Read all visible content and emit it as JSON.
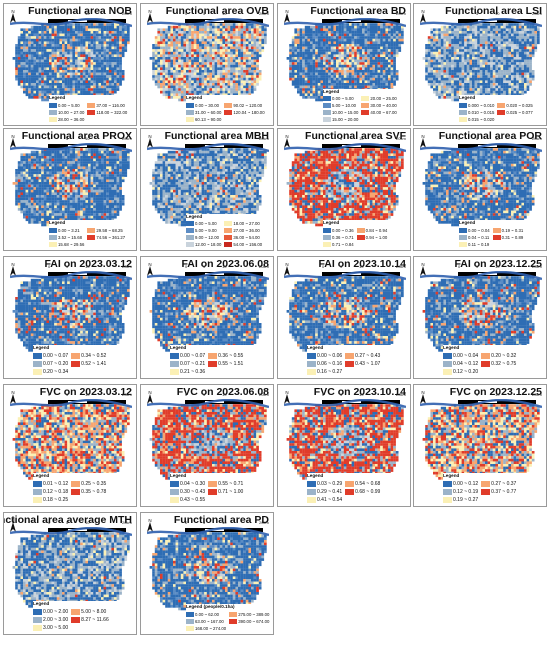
{
  "map_labels": {
    "scale_labels": [
      "0",
      "5",
      "10",
      "20km"
    ],
    "north_symbol": "N"
  },
  "panels": [
    {
      "title": "Functional area NOB",
      "legend_title": "Legend",
      "style": "blue",
      "classes": [
        {
          "label": "0.00 ~ 5.00",
          "color": "#2e6db4"
        },
        {
          "label": "10.00 ~ 27.00",
          "color": "#9bb3c9"
        },
        {
          "label": "28.00 ~ 36.00",
          "color": "#fbf0b5"
        },
        {
          "label": "37.00 ~ 116.00",
          "color": "#f7a570"
        },
        {
          "label": "118.00 ~ 322.00",
          "color": "#e03c2a"
        }
      ]
    },
    {
      "title": "Functional area OVB",
      "legend_title": "Legend",
      "style": "mixed",
      "classes": [
        {
          "label": "0.00 ~ 30.00",
          "color": "#2e6db4"
        },
        {
          "label": "31.00 ~ 60.00",
          "color": "#9bb3c9"
        },
        {
          "label": "60.13 ~ 90.00",
          "color": "#fbf0b5"
        },
        {
          "label": "90.02 ~ 120.00",
          "color": "#f7a570"
        },
        {
          "label": "120.04 ~ 180.00",
          "color": "#e03c2a"
        }
      ]
    },
    {
      "title": "Functional area BD",
      "legend_title": "Legend",
      "style": "blue",
      "classes": [
        {
          "label": "0.00 ~ 5.00",
          "color": "#2e6db4"
        },
        {
          "label": "5.00 ~ 10.00",
          "color": "#5b8cc4"
        },
        {
          "label": "10.00 ~ 15.00",
          "color": "#9bb3c9"
        },
        {
          "label": "15.00 ~ 20.00",
          "color": "#c9d3dc"
        },
        {
          "label": "20.00 ~ 25.00",
          "color": "#fbf0b5"
        },
        {
          "label": "30.00 ~ 40.00",
          "color": "#f7a570"
        },
        {
          "label": "40.00 ~ 67.00",
          "color": "#e03c2a"
        }
      ]
    },
    {
      "title": "Functional area LSI",
      "legend_title": "Legend",
      "style": "grey",
      "classes": [
        {
          "label": "0.000 ~ 0.010",
          "color": "#2e6db4"
        },
        {
          "label": "0.010 ~ 0.015",
          "color": "#9bb3c9"
        },
        {
          "label": "0.015 ~ 0.020",
          "color": "#fbf0b5"
        },
        {
          "label": "0.020 ~ 0.025",
          "color": "#f7a570"
        },
        {
          "label": "0.025 ~ 0.077",
          "color": "#e03c2a"
        }
      ]
    },
    {
      "title": "Functional area PROX",
      "legend_title": "Legend",
      "style": "blue",
      "classes": [
        {
          "label": "0.00 ~ 3.21",
          "color": "#2e6db4"
        },
        {
          "label": "3.52 ~ 15.68",
          "color": "#9bb3c9"
        },
        {
          "label": "15.68 ~ 29.56",
          "color": "#fbf0b5"
        },
        {
          "label": "29.58 ~ 68.25",
          "color": "#f7a570"
        },
        {
          "label": "74.56 ~ 361.27",
          "color": "#e03c2a"
        }
      ]
    },
    {
      "title": "Functional area MBH",
      "legend_title": "Legend",
      "style": "grey",
      "classes": [
        {
          "label": "0.00 ~ 5.00",
          "color": "#2e6db4"
        },
        {
          "label": "5.00 ~ 9.00",
          "color": "#5b8cc4"
        },
        {
          "label": "9.00 ~ 12.00",
          "color": "#9bb3c9"
        },
        {
          "label": "12.00 ~ 18.00",
          "color": "#c9d3dc"
        },
        {
          "label": "18.00 ~ 27.00",
          "color": "#fbf0b5"
        },
        {
          "label": "27.00 ~ 36.00",
          "color": "#f7a570"
        },
        {
          "label": "36.00 ~ 54.00",
          "color": "#e65a3a"
        },
        {
          "label": "54.00 ~ 156.00",
          "color": "#c8281e"
        }
      ]
    },
    {
      "title": "Functional area SVF",
      "legend_title": "Legend",
      "style": "red",
      "classes": [
        {
          "label": "0.00 ~ 0.36",
          "color": "#2e6db4"
        },
        {
          "label": "0.36 ~ 0.71",
          "color": "#9bb3c9"
        },
        {
          "label": "0.71 ~ 0.84",
          "color": "#fbf0b5"
        },
        {
          "label": "0.84 ~ 0.94",
          "color": "#f7a570"
        },
        {
          "label": "0.94 ~ 1.00",
          "color": "#e03c2a"
        }
      ]
    },
    {
      "title": "Functional area POR",
      "legend_title": "Legend",
      "style": "blue",
      "classes": [
        {
          "label": "0.00 ~ 0.04",
          "color": "#2e6db4"
        },
        {
          "label": "0.04 ~ 0.11",
          "color": "#9bb3c9"
        },
        {
          "label": "0.11 ~ 0.19",
          "color": "#fbf0b5"
        },
        {
          "label": "0.19 ~ 0.31",
          "color": "#f7a570"
        },
        {
          "label": "0.31 ~ 0.89",
          "color": "#e03c2a"
        }
      ]
    },
    {
      "title": "FAI on 2023.03.12",
      "legend_title": "Legend",
      "style": "blue",
      "big": true,
      "classes": [
        {
          "label": "0.00 ~ 0.07",
          "color": "#2e6db4"
        },
        {
          "label": "0.07 ~ 0.20",
          "color": "#9bb3c9"
        },
        {
          "label": "0.20 ~ 0.34",
          "color": "#fbf0b5"
        },
        {
          "label": "0.34 ~ 0.52",
          "color": "#f7a570"
        },
        {
          "label": "0.52 ~ 1.41",
          "color": "#e03c2a"
        }
      ]
    },
    {
      "title": "FAI on 2023.06.08",
      "legend_title": "Legend",
      "style": "blue",
      "big": true,
      "classes": [
        {
          "label": "0.00 ~ 0.07",
          "color": "#2e6db4"
        },
        {
          "label": "0.07 ~ 0.21",
          "color": "#9bb3c9"
        },
        {
          "label": "0.21 ~ 0.36",
          "color": "#fbf0b5"
        },
        {
          "label": "0.36 ~ 0.55",
          "color": "#f7a570"
        },
        {
          "label": "0.55 ~ 1.51",
          "color": "#e03c2a"
        }
      ]
    },
    {
      "title": "FAI on 2023.10.14",
      "legend_title": "Legend",
      "style": "blue",
      "big": true,
      "classes": [
        {
          "label": "0.00 ~ 0.06",
          "color": "#2e6db4"
        },
        {
          "label": "0.06 ~ 0.16",
          "color": "#9bb3c9"
        },
        {
          "label": "0.16 ~ 0.27",
          "color": "#fbf0b5"
        },
        {
          "label": "0.27 ~ 0.43",
          "color": "#f7a570"
        },
        {
          "label": "0.43 ~ 1.07",
          "color": "#e03c2a"
        }
      ]
    },
    {
      "title": "FAI on 2023.12.25",
      "legend_title": "Legend",
      "style": "blue",
      "big": true,
      "classes": [
        {
          "label": "0.00 ~ 0.04",
          "color": "#2e6db4"
        },
        {
          "label": "0.04 ~ 0.12",
          "color": "#9bb3c9"
        },
        {
          "label": "0.12 ~ 0.20",
          "color": "#fbf0b5"
        },
        {
          "label": "0.20 ~ 0.32",
          "color": "#f7a570"
        },
        {
          "label": "0.32 ~ 0.75",
          "color": "#e03c2a"
        }
      ]
    },
    {
      "title": "FVC on 2023.03.12",
      "legend_title": "Legend",
      "style": "warm",
      "big": true,
      "classes": [
        {
          "label": "0.01 ~ 0.12",
          "color": "#2e6db4"
        },
        {
          "label": "0.12 ~ 0.18",
          "color": "#9bb3c9"
        },
        {
          "label": "0.18 ~ 0.25",
          "color": "#fbf0b5"
        },
        {
          "label": "0.25 ~ 0.35",
          "color": "#f7a570"
        },
        {
          "label": "0.35 ~ 0.78",
          "color": "#e03c2a"
        }
      ]
    },
    {
      "title": "FVC on 2023.06.08",
      "legend_title": "Legend",
      "style": "red",
      "big": true,
      "classes": [
        {
          "label": "0.04 ~ 0.30",
          "color": "#2e6db4"
        },
        {
          "label": "0.30 ~ 0.43",
          "color": "#9bb3c9"
        },
        {
          "label": "0.43 ~ 0.55",
          "color": "#fbf0b5"
        },
        {
          "label": "0.55 ~ 0.71",
          "color": "#f7a570"
        },
        {
          "label": "0.71 ~ 1.00",
          "color": "#e03c2a"
        }
      ]
    },
    {
      "title": "FVC on 2023.10.14",
      "legend_title": "Legend",
      "style": "red",
      "big": true,
      "classes": [
        {
          "label": "0.03 ~ 0.29",
          "color": "#2e6db4"
        },
        {
          "label": "0.29 ~ 0.41",
          "color": "#9bb3c9"
        },
        {
          "label": "0.41 ~ 0.54",
          "color": "#fbf0b5"
        },
        {
          "label": "0.54 ~ 0.68",
          "color": "#f7a570"
        },
        {
          "label": "0.68 ~ 0.99",
          "color": "#e03c2a"
        }
      ]
    },
    {
      "title": "FVC on 2023.12.25",
      "legend_title": "Legend",
      "style": "warm",
      "big": true,
      "classes": [
        {
          "label": "0.00 ~ 0.12",
          "color": "#2e6db4"
        },
        {
          "label": "0.12 ~ 0.19",
          "color": "#9bb3c9"
        },
        {
          "label": "0.19 ~ 0.27",
          "color": "#fbf0b5"
        },
        {
          "label": "0.27 ~ 0.37",
          "color": "#f7a570"
        },
        {
          "label": "0.37 ~ 0.77",
          "color": "#e03c2a"
        }
      ]
    },
    {
      "title": "Functional area average MTH",
      "legend_title": "Legend",
      "style": "grey",
      "big": true,
      "classes": [
        {
          "label": "0.00 ~ 2.00",
          "color": "#2e6db4"
        },
        {
          "label": "2.00 ~ 3.00",
          "color": "#9bb3c9"
        },
        {
          "label": "3.00 ~ 5.00",
          "color": "#fbf0b5"
        },
        {
          "label": "5.00 ~ 8.00",
          "color": "#f7a570"
        },
        {
          "label": "8.27 ~ 11.66",
          "color": "#e03c2a"
        }
      ]
    },
    {
      "title": "Functional area PD",
      "legend_title": "Legend (people/0.1ha)",
      "style": "blue",
      "classes": [
        {
          "label": "0.00 ~ 62.00",
          "color": "#2e6db4"
        },
        {
          "label": "63.00 ~ 167.00",
          "color": "#9bb3c9"
        },
        {
          "label": "168.00 ~ 274.00",
          "color": "#fbf0b5"
        },
        {
          "label": "275.00 ~ 389.00",
          "color": "#f7a570"
        },
        {
          "label": "390.00 ~ 674.00",
          "color": "#e03c2a"
        }
      ]
    }
  ]
}
